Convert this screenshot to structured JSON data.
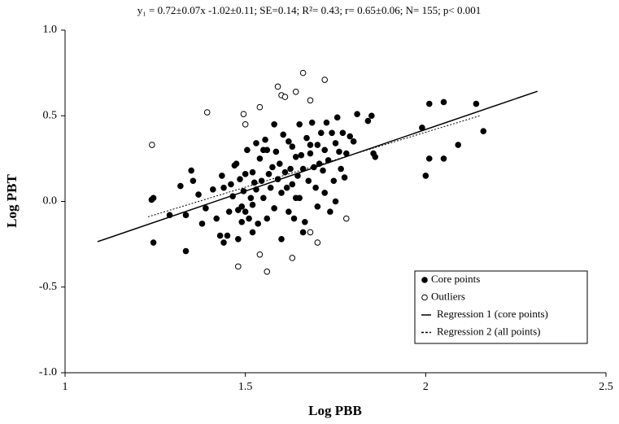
{
  "chart_data": {
    "type": "scatter",
    "title": "y₁ = 0.72±0.07x -1.02±0.11; SE=0.14; R²= 0.43; r= 0.65±0.06; N= 155; p< 0.001",
    "x_label": "Log PBB",
    "y_label": "Log PBT",
    "xlim": [
      1,
      2.5
    ],
    "ylim": [
      -1,
      1
    ],
    "xticks": [
      1,
      1.5,
      2,
      2.5
    ],
    "yticks": [
      {
        "value": -1,
        "label": "-1.0"
      },
      -0.5,
      {
        "value": 0,
        "label": "0.0"
      },
      0.5,
      {
        "value": 1,
        "label": "1.0"
      }
    ],
    "legend": "lower right",
    "series": [
      {
        "name": "Core points",
        "color": "#000000",
        "marker": "filled",
        "x": [
          1.24,
          1.245,
          1.245,
          1.29,
          1.32,
          1.335,
          1.335,
          1.35,
          1.355,
          1.37,
          1.38,
          1.39,
          1.41,
          1.42,
          1.43,
          1.435,
          1.44,
          1.44,
          1.45,
          1.455,
          1.46,
          1.465,
          1.47,
          1.475,
          1.48,
          1.485,
          1.49,
          1.49,
          1.495,
          1.5,
          1.5,
          1.505,
          1.51,
          1.515,
          1.52,
          1.52,
          1.525,
          1.53,
          1.53,
          1.535,
          1.54,
          1.545,
          1.55,
          1.55,
          1.555,
          1.56,
          1.565,
          1.57,
          1.575,
          1.58,
          1.585,
          1.59,
          1.595,
          1.6,
          1.6,
          1.605,
          1.61,
          1.615,
          1.62,
          1.62,
          1.625,
          1.63,
          1.63,
          1.635,
          1.64,
          1.645,
          1.65,
          1.65,
          1.655,
          1.66,
          1.665,
          1.67,
          1.675,
          1.68,
          1.685,
          1.69,
          1.695,
          1.7,
          1.7,
          1.705,
          1.71,
          1.715,
          1.72,
          1.72,
          1.725,
          1.73,
          1.735,
          1.74,
          1.745,
          1.75,
          1.75,
          1.755,
          1.76,
          1.765,
          1.77,
          1.775,
          1.78,
          1.79,
          1.8,
          1.81,
          1.84,
          1.85,
          1.855,
          1.86,
          1.99,
          2.0,
          2.01,
          2.01,
          2.05,
          2.05,
          2.09,
          2.14,
          2.16,
          1.68,
          1.58,
          1.56,
          1.48,
          1.66,
          1.52,
          1.64
        ],
        "values": [
          0.01,
          0.02,
          -0.24,
          -0.08,
          0.09,
          -0.08,
          -0.29,
          0.18,
          0.12,
          0.04,
          -0.13,
          -0.04,
          0.07,
          -0.1,
          -0.2,
          0.15,
          0.08,
          -0.24,
          -0.2,
          -0.06,
          0.1,
          0.03,
          0.21,
          0.22,
          -0.05,
          0.13,
          -0.03,
          -0.12,
          0.06,
          0.16,
          -0.06,
          0.3,
          -0.1,
          0.02,
          0.17,
          -0.02,
          0.11,
          0.34,
          0.07,
          -0.13,
          0.25,
          0.12,
          0.3,
          0.02,
          0.36,
          -0.1,
          0.16,
          0.08,
          0.2,
          -0.04,
          0.29,
          0.13,
          0.22,
          0.05,
          -0.22,
          0.39,
          0.17,
          0.08,
          0.35,
          -0.06,
          0.19,
          0.32,
          0.1,
          -0.1,
          0.26,
          0.15,
          0.45,
          0.02,
          0.27,
          0.19,
          -0.12,
          0.37,
          0.12,
          0.28,
          0.46,
          0.2,
          0.08,
          0.33,
          -0.03,
          0.22,
          0.4,
          0.18,
          0.3,
          0.05,
          0.46,
          0.24,
          -0.06,
          0.4,
          0.12,
          0.34,
          0.0,
          0.49,
          0.29,
          0.19,
          0.4,
          0.14,
          0.28,
          0.38,
          0.35,
          0.51,
          0.47,
          0.5,
          0.28,
          0.26,
          0.43,
          0.15,
          0.25,
          0.57,
          0.58,
          0.25,
          0.33,
          0.57,
          0.41,
          0.33,
          0.45,
          0.3,
          -0.22,
          -0.18,
          -0.18,
          0.02
        ]
      },
      {
        "name": "Outliers",
        "color": "#000000",
        "marker": "open",
        "x": [
          1.241,
          1.394,
          1.495,
          1.5,
          1.54,
          1.59,
          1.6,
          1.61,
          1.64,
          1.66,
          1.68,
          1.72,
          1.48,
          1.54,
          1.56,
          1.63,
          1.68,
          1.7,
          1.78
        ],
        "values": [
          0.33,
          0.52,
          0.51,
          0.45,
          0.55,
          0.67,
          0.62,
          0.61,
          0.64,
          0.75,
          0.59,
          0.71,
          -0.38,
          -0.31,
          -0.41,
          -0.33,
          -0.18,
          -0.24,
          -0.1
        ]
      },
      {
        "name": "Regression 1 (core points)",
        "color": "#000000",
        "line": "solid",
        "x": [
          1.09,
          2.31
        ],
        "values": [
          -0.235,
          0.643
        ]
      },
      {
        "name": "Regression 2 (all points)",
        "color": "#000000",
        "line": "dotted",
        "x": [
          1.23,
          2.15
        ],
        "values": [
          -0.09,
          0.5
        ]
      }
    ]
  }
}
